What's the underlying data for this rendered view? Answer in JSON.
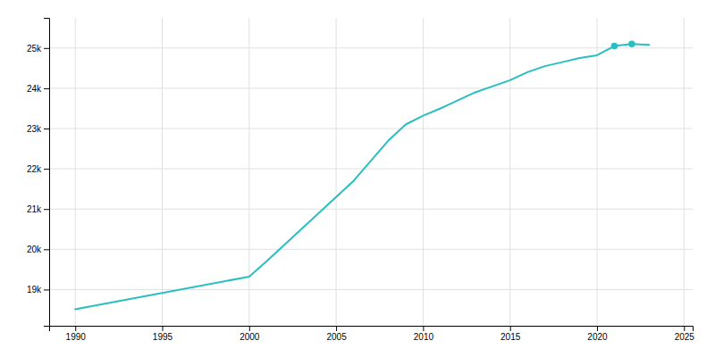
{
  "chart_data": {
    "type": "line",
    "x": [
      1990,
      2000,
      2001,
      2002,
      2003,
      2004,
      2005,
      2006,
      2007,
      2008,
      2009,
      2010,
      2011,
      2012,
      2013,
      2014,
      2015,
      2016,
      2017,
      2018,
      2019,
      2020,
      2021,
      2022,
      2023
    ],
    "series": [
      {
        "color": "#29BEC0",
        "values": [
          18510,
          19320,
          19700,
          20100,
          20500,
          20900,
          21300,
          21700,
          22200,
          22700,
          23100,
          23320,
          23500,
          23700,
          23900,
          24050,
          24200,
          24400,
          24550,
          24650,
          24750,
          24820,
          25050,
          25100,
          25080
        ]
      },
      {
        "type": "scatter",
        "marker": "circle",
        "color": "#29BEC0",
        "values": [
          null,
          null,
          null,
          null,
          null,
          null,
          null,
          null,
          null,
          null,
          null,
          null,
          null,
          null,
          null,
          null,
          null,
          null,
          null,
          null,
          null,
          null,
          25050,
          25100,
          null
        ]
      }
    ],
    "xlim": [
      1988.5,
      2025.5
    ],
    "xticks": [
      1990,
      1995,
      2000,
      2005,
      2010,
      2015,
      2020,
      2025
    ],
    "ylim": [
      18100,
      25750
    ],
    "yticks": [
      {
        "value": 19000,
        "label": "19k"
      },
      {
        "value": 20000,
        "label": "20k"
      },
      {
        "value": 21000,
        "label": "21k"
      },
      {
        "value": 22000,
        "label": "22k"
      },
      {
        "value": 23000,
        "label": "23k"
      },
      {
        "value": 24000,
        "label": "24k"
      },
      {
        "value": 25000,
        "label": "25k"
      }
    ],
    "grid": true
  }
}
